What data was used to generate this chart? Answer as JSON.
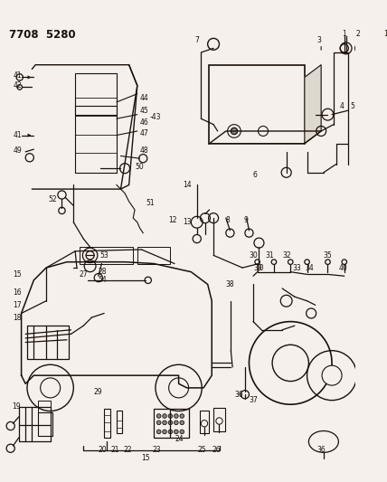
{
  "title": "7708 5280",
  "bg_color": "#f5f0eb",
  "line_color": "#1a1008",
  "fig_width": 4.28,
  "fig_height": 5.33,
  "dpi": 100
}
